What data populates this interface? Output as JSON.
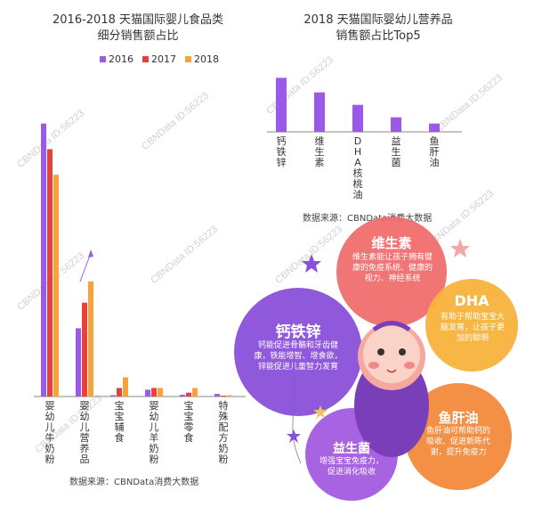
{
  "chart_data": [
    {
      "type": "bar",
      "title_line1": "2016-2018 天猫国际婴儿食品类",
      "title_line2": "细分销售额占比",
      "categories": [
        "婴幼儿牛奶粉",
        "婴幼儿营养品",
        "宝宝辅食",
        "婴幼儿羊奶粉",
        "宝宝零食",
        "特殊配方奶粉"
      ],
      "series": [
        {
          "name": "2016",
          "values": [
            64,
            16,
            0.3,
            1.6,
            0.4,
            0.6
          ]
        },
        {
          "name": "2017",
          "values": [
            58,
            22,
            2.0,
            2.0,
            0.9,
            0.2
          ]
        },
        {
          "name": "2018",
          "values": [
            52,
            27,
            4.5,
            2.0,
            2.0,
            0.3
          ]
        }
      ],
      "ylim": [
        0,
        70
      ],
      "source": "数据来源：CBNData消费大数据"
    },
    {
      "type": "bar",
      "title_line1": "2018 天猫国际婴幼儿营养品",
      "title_line2": "销售额占比Top5",
      "categories": [
        "钙铁锌",
        "维生素",
        "DHA核桃油",
        "益生菌",
        "鱼肝油"
      ],
      "values": [
        26,
        19,
        13,
        7,
        4
      ],
      "ylim": [
        0,
        30
      ],
      "source": "数据来源：CBNData消费大数据"
    }
  ],
  "colors": {
    "s2016": "#9b59e8",
    "s2017": "#e8413c",
    "s2018": "#f7a23b",
    "top5": "#9b59e8"
  },
  "watermark": "CBNData ID:56223",
  "bubbles": [
    {
      "title": "钙铁锌",
      "text": "钙能促进骨骼和牙齿健康，铁能增智、增食欲，锌能促进儿童智力发育",
      "color": "#8a4fd8"
    },
    {
      "title": "维生素",
      "text": "维生素能让孩子拥有健康的免疫系统、健康的视力、神经系统",
      "color": "#f06e6e"
    },
    {
      "title": "DHA",
      "text": "有助于帮助宝宝大脑发育，让孩子更加的聪明",
      "color": "#f7b23b"
    },
    {
      "title": "益生菌",
      "text": "增强宝宝免疫力，促进消化吸收",
      "color": "#a35be0"
    },
    {
      "title": "鱼肝油",
      "text": "鱼肝油可帮助钙的吸收、促进新陈代谢，提升免疫力",
      "color": "#f28a3c"
    }
  ]
}
